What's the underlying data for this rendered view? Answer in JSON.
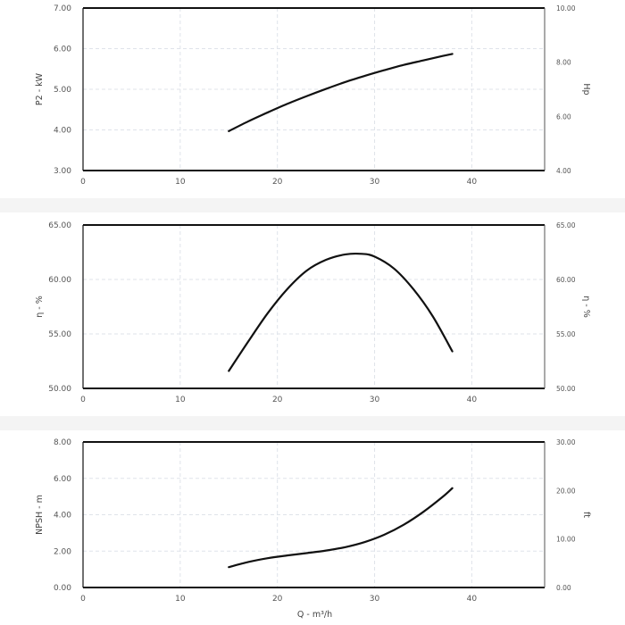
{
  "chart_data": [
    {
      "type": "line",
      "xlabel": "",
      "ylabel": "P2 - kW",
      "y2label": "Hp",
      "xlim": [
        0,
        47.5
      ],
      "ylim": [
        3,
        7
      ],
      "y2lim": [
        4,
        10
      ],
      "xticks": [
        "0",
        "10",
        "20",
        "30",
        "40"
      ],
      "yticks": [
        "3.00",
        "4.00",
        "5.00",
        "6.00",
        "7.00"
      ],
      "y2ticks": [
        "4.00",
        "6.00",
        "8.00",
        "10.00"
      ],
      "grid": true,
      "series": [
        {
          "x": [
            15,
            17,
            19,
            21,
            23,
            25,
            27,
            29,
            31,
            33,
            35,
            37,
            38
          ],
          "y": [
            3.97,
            4.21,
            4.43,
            4.64,
            4.83,
            5.01,
            5.18,
            5.33,
            5.47,
            5.6,
            5.71,
            5.82,
            5.87
          ]
        }
      ]
    },
    {
      "type": "line",
      "xlabel": "",
      "ylabel": "η - %",
      "y2label": "η - %",
      "xlim": [
        0,
        47.5
      ],
      "ylim": [
        50,
        65
      ],
      "y2lim": [
        50,
        65
      ],
      "xticks": [
        "0",
        "10",
        "20",
        "30",
        "40"
      ],
      "yticks": [
        "50.00",
        "55.00",
        "60.00",
        "65.00"
      ],
      "y2ticks": [
        "50.00",
        "55.00",
        "60.00",
        "65.00"
      ],
      "grid": true,
      "series": [
        {
          "x": [
            15,
            17,
            19,
            21,
            23,
            25,
            27,
            28.7,
            30,
            32,
            34,
            36,
            38
          ],
          "y": [
            51.6,
            54.3,
            56.9,
            59.1,
            60.8,
            61.8,
            62.3,
            62.35,
            62.1,
            61.0,
            59.1,
            56.6,
            53.4
          ]
        }
      ]
    },
    {
      "type": "line",
      "xlabel": "Q - m³/h",
      "ylabel": "NPSH - m",
      "y2label": "ft",
      "xlim": [
        0,
        47.5
      ],
      "ylim": [
        0,
        8
      ],
      "y2lim": [
        0,
        30
      ],
      "xticks": [
        "0",
        "10",
        "20",
        "30",
        "40"
      ],
      "yticks": [
        "0.00",
        "2.00",
        "4.00",
        "6.00",
        "8.00"
      ],
      "y2ticks": [
        "0.00",
        "10.00",
        "20.00",
        "30.00"
      ],
      "grid": true,
      "series": [
        {
          "x": [
            15,
            17,
            19,
            21,
            23,
            25,
            27,
            29,
            31,
            33,
            35,
            37,
            38
          ],
          "y": [
            1.12,
            1.4,
            1.61,
            1.76,
            1.89,
            2.03,
            2.22,
            2.5,
            2.9,
            3.45,
            4.15,
            4.98,
            5.46
          ]
        }
      ]
    }
  ]
}
